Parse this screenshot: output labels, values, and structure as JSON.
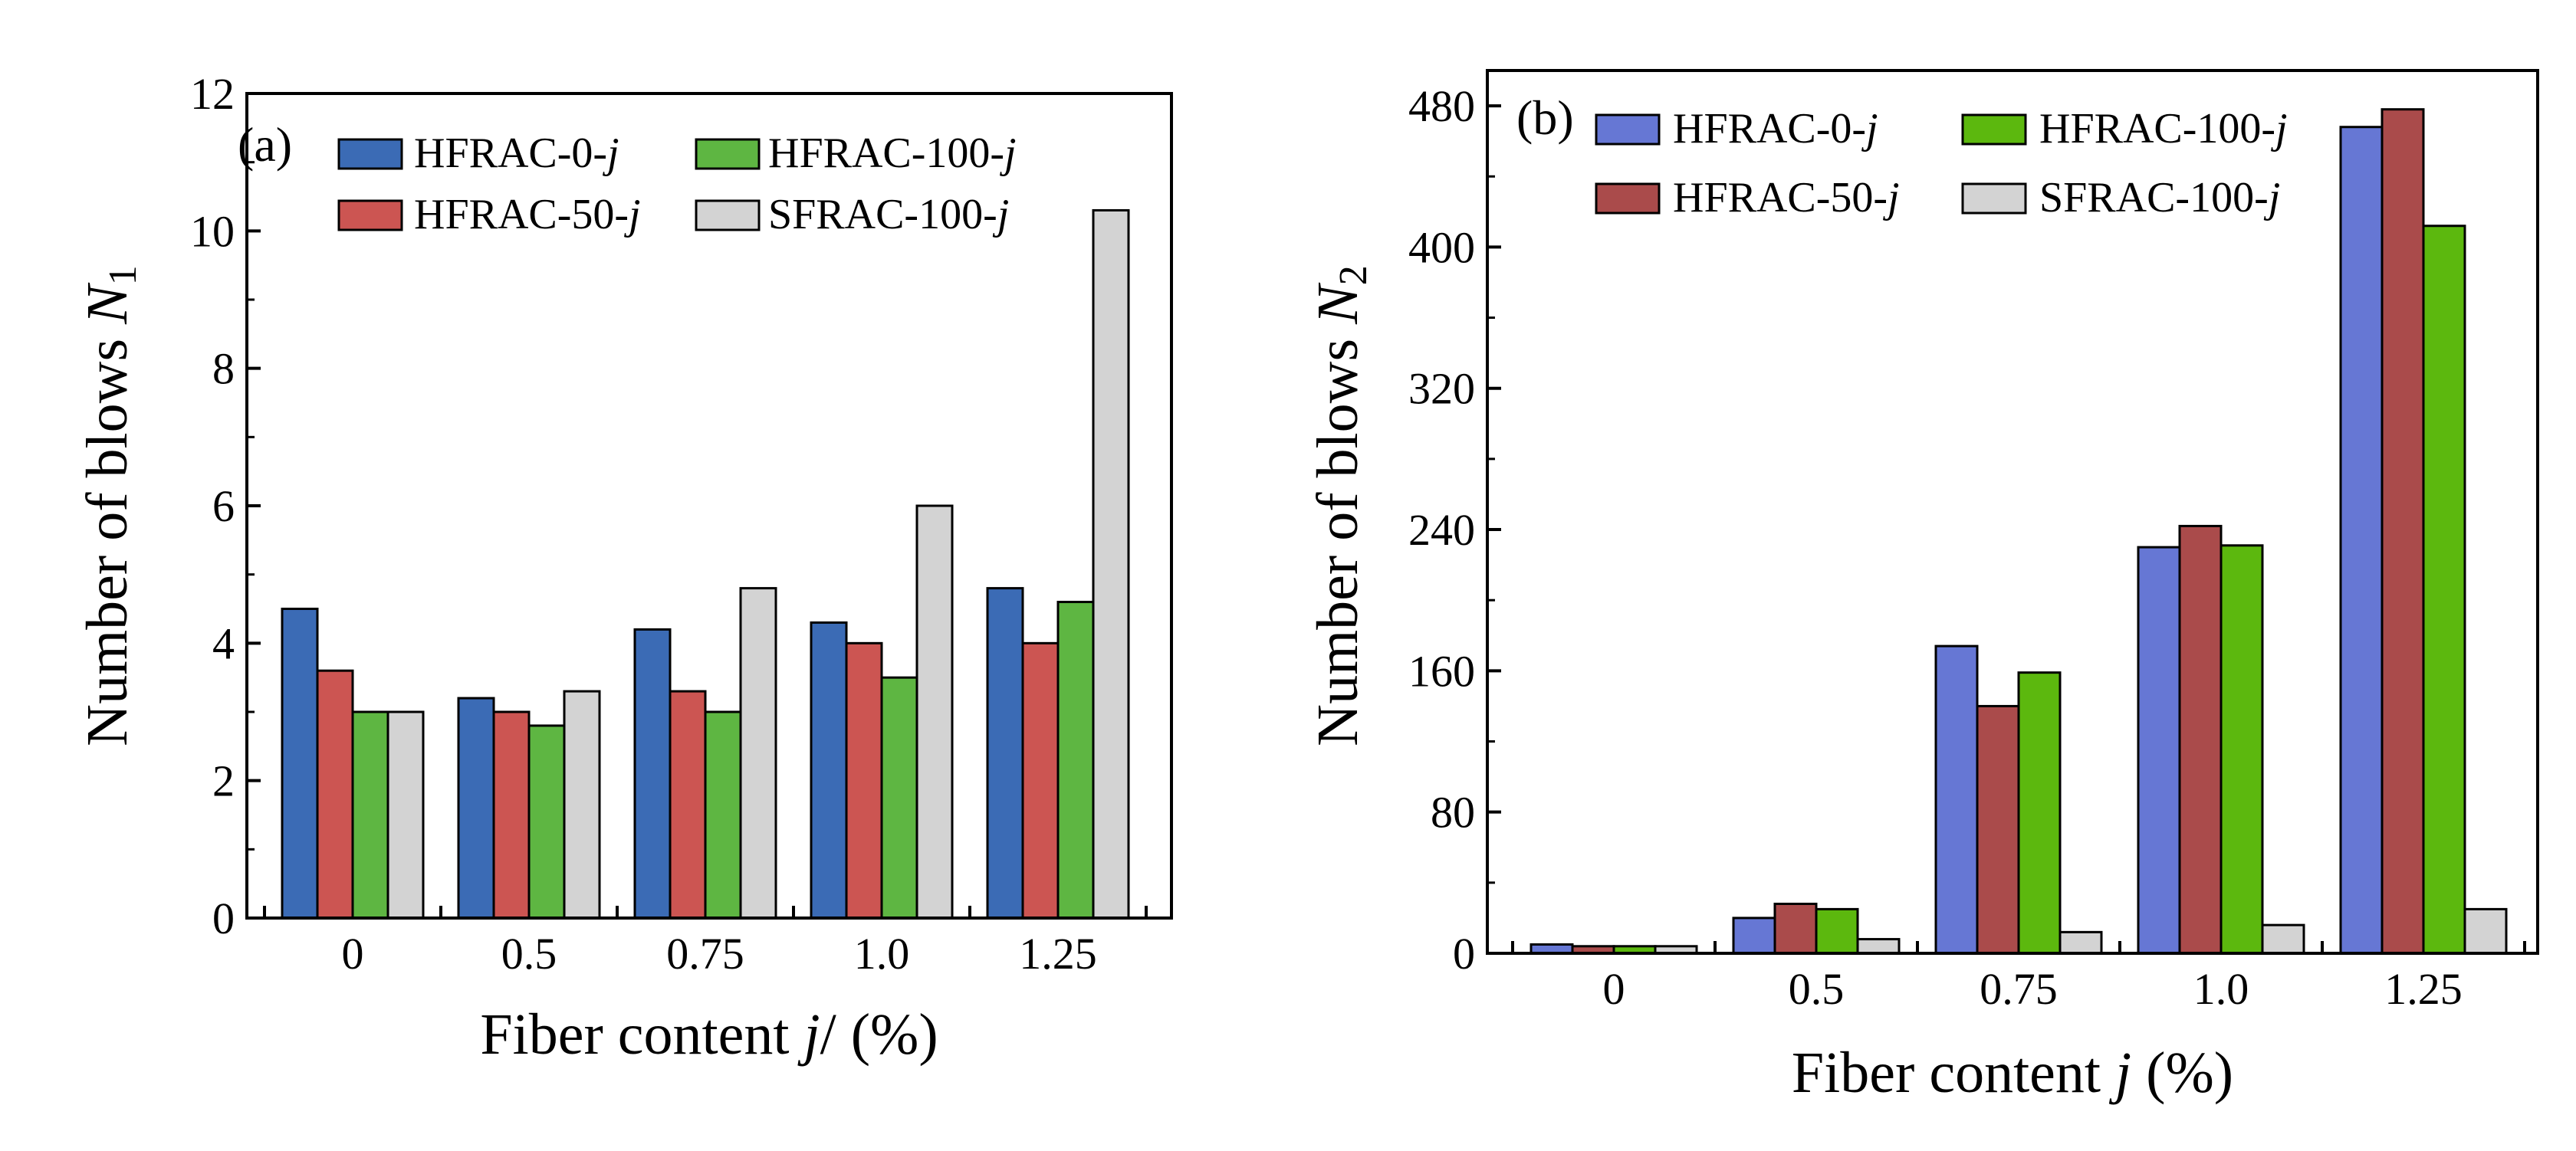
{
  "chart_data": [
    {
      "panel": "(a)",
      "type": "bar",
      "categories": [
        "0",
        "0.5",
        "0.75",
        "1.0",
        "1.25"
      ],
      "series": [
        {
          "name": "HFRAC-0-",
          "values": [
            4.5,
            3.2,
            4.2,
            4.3,
            4.8
          ]
        },
        {
          "name": "HFRAC-50-",
          "values": [
            3.6,
            3.0,
            3.3,
            4.0,
            4.0
          ]
        },
        {
          "name": "HFRAC-100-",
          "values": [
            3.0,
            2.8,
            3.0,
            3.5,
            4.6
          ]
        },
        {
          "name": "SFRAC-100-",
          "values": [
            3.0,
            3.3,
            4.8,
            6.0,
            10.3
          ]
        }
      ],
      "legend_suffix": "j",
      "ylim": [
        0,
        12
      ],
      "yticks": [
        "0",
        "2",
        "4",
        "6",
        "8",
        "10",
        "12"
      ],
      "xlabel": "Fiber content ",
      "xlabel_var": "j",
      "xlabel_tail": "/ (%)",
      "ylabel": "Number of blows ",
      "ylabel_var": "N",
      "ylabel_sub": "1",
      "legend_position": "top-left"
    },
    {
      "panel": "(b)",
      "type": "bar",
      "categories": [
        "0",
        "0.5",
        "0.75",
        "1.0",
        "1.25"
      ],
      "series": [
        {
          "name": "HFRAC-0-",
          "values": [
            5,
            20,
            174,
            230,
            468
          ]
        },
        {
          "name": "HFRAC-50-",
          "values": [
            4,
            28,
            140,
            242,
            478
          ]
        },
        {
          "name": "HFRAC-100-",
          "values": [
            4,
            25,
            159,
            231,
            412
          ]
        },
        {
          "name": "SFRAC-100-",
          "values": [
            4,
            8,
            12,
            16,
            25
          ]
        }
      ],
      "legend_suffix": "j",
      "ylim": [
        0,
        500
      ],
      "yticks": [
        "0",
        "80",
        "160",
        "240",
        "320",
        "400",
        "480"
      ],
      "xlabel": "Fiber content ",
      "xlabel_var": "j",
      "xlabel_tail": " (%)",
      "ylabel": "Number of blows ",
      "ylabel_var": "N",
      "ylabel_sub": "2",
      "legend_position": "top-left"
    }
  ],
  "colors": {
    "a": [
      "#3b6bb5",
      "#cc5552",
      "#5eb642",
      "#d3d3d3"
    ],
    "b": [
      "#6677d4",
      "#aa4b4b",
      "#5cb80e",
      "#d3d3d3"
    ]
  }
}
